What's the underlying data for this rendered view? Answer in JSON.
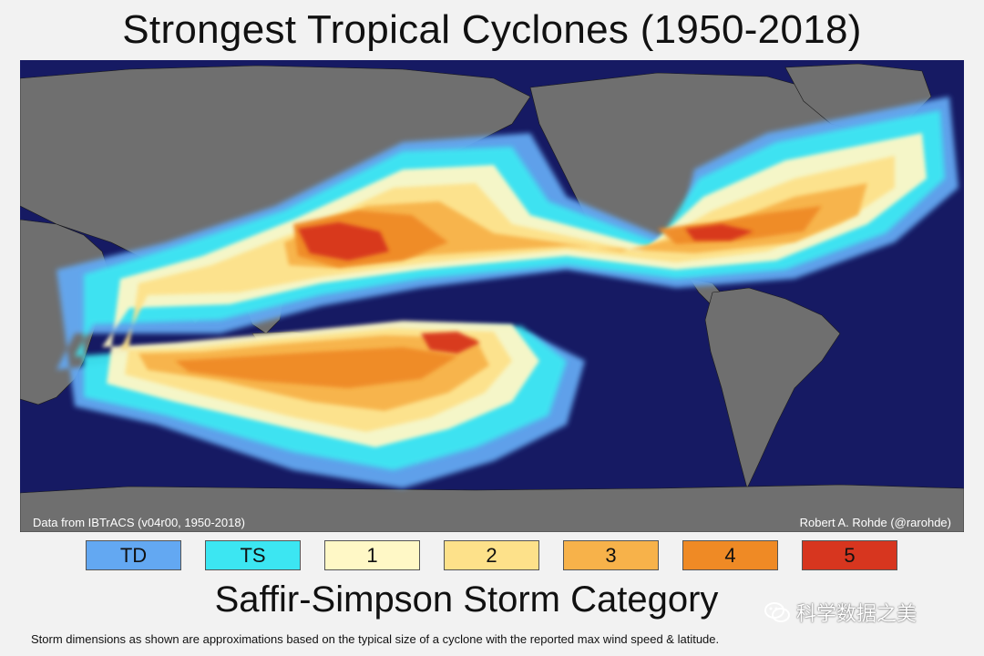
{
  "title": "Strongest Tropical Cyclones (1950-2018)",
  "map": {
    "credit_left": "Data from IBTrACS (v04r00, 1950-2018)",
    "credit_right": "Robert A. Rohde (@rarohde)",
    "colors": {
      "ocean": "#161a63",
      "land": "#6f6f6f",
      "TD": "#63a8f2",
      "TS": "#3ce6f2",
      "1": "#fff8c6",
      "2": "#fde18a",
      "3": "#f7b24a",
      "4": "#ef8a25",
      "5": "#d7361f"
    }
  },
  "legend": {
    "items": [
      {
        "label": "TD",
        "color": "#63a8f2"
      },
      {
        "label": "TS",
        "color": "#3ce6f2"
      },
      {
        "label": "1",
        "color": "#fff8c6"
      },
      {
        "label": "2",
        "color": "#fde18a"
      },
      {
        "label": "3",
        "color": "#f7b24a"
      },
      {
        "label": "4",
        "color": "#ef8a25"
      },
      {
        "label": "5",
        "color": "#d7361f"
      }
    ],
    "title": "Saffir-Simpson Storm Category"
  },
  "footnote": "Storm dimensions as shown are approximations based on the typical size of a cyclone with the reported max wind speed & latitude.",
  "watermark": {
    "text": "科学数据之美",
    "icon": "wechat-icon"
  }
}
